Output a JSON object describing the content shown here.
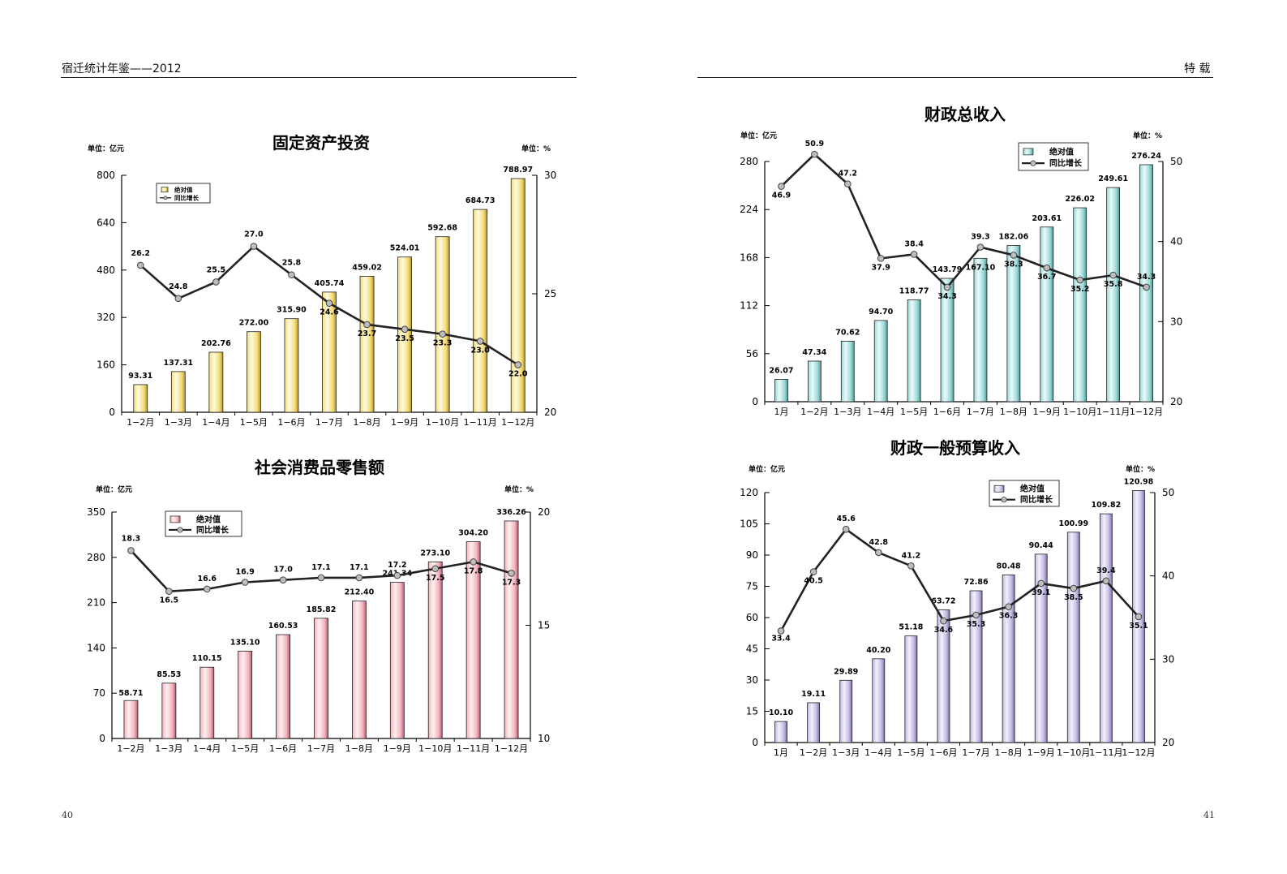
{
  "header": {
    "left_title": "宿迁统计年鉴——2012",
    "right_title": "特 载",
    "left_page": "40",
    "right_page": "41"
  },
  "chart_data": [
    {
      "type": "bar",
      "title": "固定资产投资",
      "unit_left": "单位：亿元",
      "unit_right": "单位：%",
      "categories": [
        "1−2月",
        "1−3月",
        "1−4月",
        "1−5月",
        "1−6月",
        "1−7月",
        "1−8月",
        "1−9月",
        "1−10月",
        "1−11月",
        "1−12月"
      ],
      "series": [
        {
          "name": "绝对值",
          "type": "bar",
          "axis": "left",
          "values": [
            93.31,
            137.31,
            202.76,
            272.0,
            315.9,
            405.74,
            459.02,
            524.01,
            592.68,
            684.73,
            788.97
          ],
          "labels": [
            "93.31",
            "137.31",
            "202.76",
            "272.00",
            "315.90",
            "405.74",
            "459.02",
            "524.01",
            "592.68",
            "684.73",
            "788.97"
          ]
        },
        {
          "name": "同比增长",
          "type": "line",
          "axis": "right",
          "values": [
            26.2,
            24.8,
            25.5,
            27.0,
            25.8,
            24.6,
            23.7,
            23.5,
            23.3,
            23.0,
            22.0
          ],
          "labels": [
            "26.2",
            "24.8",
            "25.5",
            "27.0",
            "25.8",
            "24.6",
            "23.7",
            "23.5",
            "23.3",
            "23.0",
            "22.0"
          ]
        }
      ],
      "ylim_left": [
        0,
        800
      ],
      "yticks_left": [
        "0",
        "160",
        "320",
        "480",
        "640",
        "800"
      ],
      "ylim_right": [
        20,
        30
      ],
      "yticks_right": [
        "20",
        "25",
        "30"
      ],
      "legend": "top-left",
      "colors": {
        "bar_light": "#fffbe0",
        "bar_mid": "#f3dc78",
        "bar_dark": "#b9952a"
      }
    },
    {
      "type": "bar",
      "title": "社会消费品零售额",
      "unit_left": "单位：亿元",
      "unit_right": "单位：%",
      "categories": [
        "1−2月",
        "1−3月",
        "1−4月",
        "1−5月",
        "1−6月",
        "1−7月",
        "1−8月",
        "1−9月",
        "1−10月",
        "1−11月",
        "1−12月"
      ],
      "series": [
        {
          "name": "绝对值",
          "type": "bar",
          "axis": "left",
          "values": [
            58.71,
            85.53,
            110.15,
            135.1,
            160.53,
            185.82,
            212.4,
            241.34,
            273.1,
            304.2,
            336.26
          ],
          "labels": [
            "58.71",
            "85.53",
            "110.15",
            "135.10",
            "160.53",
            "185.82",
            "212.40",
            "241.34",
            "273.10",
            "304.20",
            "336.26"
          ]
        },
        {
          "name": "同比增长",
          "type": "line",
          "axis": "right",
          "values": [
            18.3,
            16.5,
            16.6,
            16.9,
            17.0,
            17.1,
            17.1,
            17.2,
            17.5,
            17.8,
            17.3
          ],
          "labels": [
            "18.3",
            "16.5",
            "16.6",
            "16.9",
            "17.0",
            "17.1",
            "17.1",
            "17.2",
            "17.5",
            "17.8",
            "17.3"
          ]
        }
      ],
      "ylim_left": [
        0,
        350
      ],
      "yticks_left": [
        "0",
        "70",
        "140",
        "210",
        "280",
        "350"
      ],
      "ylim_right": [
        10,
        20
      ],
      "yticks_right": [
        "10",
        "15",
        "20"
      ],
      "legend": "top-left",
      "colors": {
        "bar_light": "#fff0f2",
        "bar_mid": "#f4b3bd",
        "bar_dark": "#b45f70"
      }
    },
    {
      "type": "bar",
      "title": "财政总收入",
      "unit_left": "单位：亿元",
      "unit_right": "单位：%",
      "categories": [
        "1月",
        "1−2月",
        "1−3月",
        "1−4月",
        "1−5月",
        "1−6月",
        "1−7月",
        "1−8月",
        "1−9月",
        "1−10月",
        "1−11月",
        "1−12月"
      ],
      "series": [
        {
          "name": "绝对值",
          "type": "bar",
          "axis": "left",
          "values": [
            26.07,
            47.34,
            70.62,
            94.7,
            118.77,
            143.79,
            167.1,
            182.06,
            203.61,
            226.02,
            249.61,
            276.24
          ],
          "labels": [
            "26.07",
            "47.34",
            "70.62",
            "94.70",
            "118.77",
            "143.79",
            "167.10",
            "182.06",
            "203.61",
            "226.02",
            "249.61",
            "276.24"
          ]
        },
        {
          "name": "同比增长",
          "type": "line",
          "axis": "right",
          "values": [
            46.9,
            50.9,
            47.2,
            37.9,
            38.4,
            34.3,
            39.3,
            38.3,
            36.7,
            35.2,
            35.8,
            34.3
          ],
          "labels": [
            "46.9",
            "50.9",
            "47.2",
            "37.9",
            "38.4",
            "34.3",
            "39.3",
            "38.3",
            "36.7",
            "35.2",
            "35.8",
            "34.3"
          ]
        }
      ],
      "ylim_left": [
        0,
        280
      ],
      "yticks_left": [
        "0",
        "56",
        "112",
        "168",
        "224",
        "280"
      ],
      "ylim_right": [
        20,
        50
      ],
      "yticks_right": [
        "20",
        "30",
        "40",
        "50"
      ],
      "legend": "top-right",
      "colors": {
        "bar_light": "#eafafa",
        "bar_mid": "#9ad9d7",
        "bar_dark": "#4a9896"
      }
    },
    {
      "type": "bar",
      "title": "财政一般预算收入",
      "unit_left": "单位：亿元",
      "unit_right": "单位：%",
      "categories": [
        "1月",
        "1−2月",
        "1−3月",
        "1−4月",
        "1−5月",
        "1−6月",
        "1−7月",
        "1−8月",
        "1−9月",
        "1−10月",
        "1−11月",
        "1−12月"
      ],
      "series": [
        {
          "name": "绝对值",
          "type": "bar",
          "axis": "left",
          "values": [
            10.1,
            19.11,
            29.89,
            40.2,
            51.18,
            63.72,
            72.86,
            80.48,
            90.44,
            100.99,
            109.82,
            120.98
          ],
          "labels": [
            "10.10",
            "19.11",
            "29.89",
            "40.20",
            "51.18",
            "63.72",
            "72.86",
            "80.48",
            "90.44",
            "100.99",
            "109.82",
            "120.98"
          ]
        },
        {
          "name": "同比增长",
          "type": "line",
          "axis": "right",
          "values": [
            33.4,
            40.5,
            45.6,
            42.8,
            41.2,
            34.6,
            35.3,
            36.3,
            39.1,
            38.5,
            39.4,
            35.1
          ],
          "labels": [
            "33.4",
            "40.5",
            "45.6",
            "42.8",
            "41.2",
            "34.6",
            "35.3",
            "36.3",
            "39.1",
            "38.5",
            "39.4",
            "35.1"
          ]
        }
      ],
      "ylim_left": [
        0,
        120
      ],
      "yticks_left": [
        "0",
        "15",
        "30",
        "45",
        "60",
        "75",
        "90",
        "105",
        "120"
      ],
      "ylim_right": [
        20,
        50
      ],
      "yticks_right": [
        "20",
        "30",
        "40",
        "50"
      ],
      "legend": "top-right",
      "colors": {
        "bar_light": "#f3f0fb",
        "bar_mid": "#c3b8e2",
        "bar_dark": "#7d6da8"
      }
    }
  ]
}
